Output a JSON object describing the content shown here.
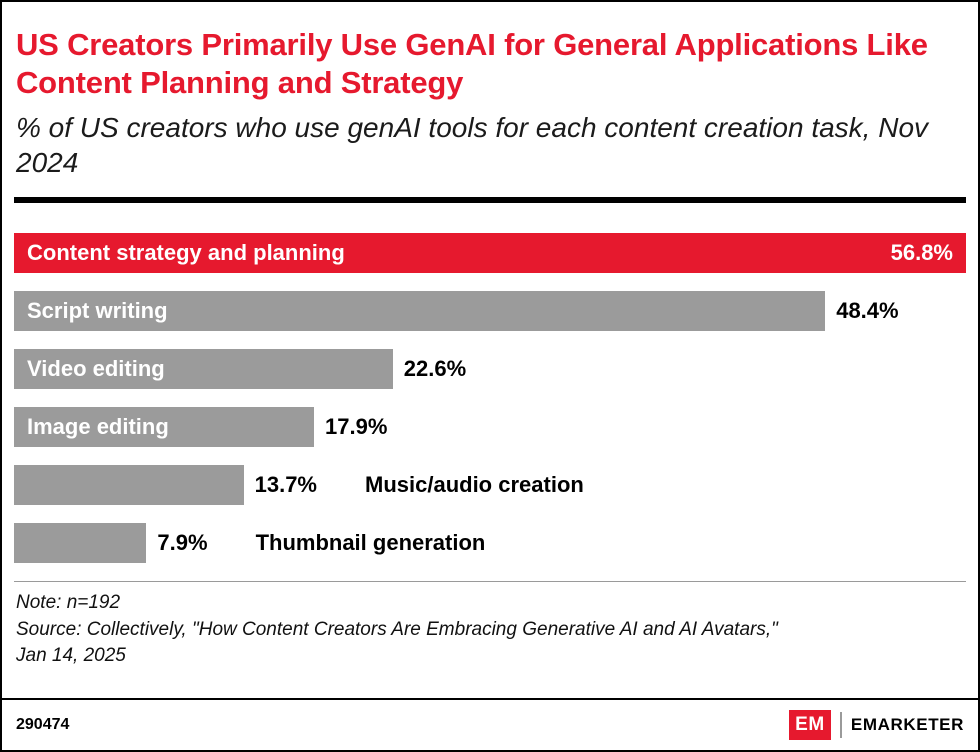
{
  "chart": {
    "title": "US Creators Primarily Use GenAI for General Applications Like Content Planning and Strategy",
    "subtitle": "% of US creators who use genAI tools for each content creation task, Nov 2024"
  },
  "chart_data": {
    "type": "bar",
    "orientation": "horizontal",
    "title": "US Creators Primarily Use GenAI for General Applications Like Content Planning and Strategy",
    "subtitle": "% of US creators who use genAI tools for each content creation task, Nov 2024",
    "categories": [
      "Content strategy and planning",
      "Script writing",
      "Video editing",
      "Image editing",
      "Music/audio creation",
      "Thumbnail generation"
    ],
    "values": [
      56.8,
      48.4,
      22.6,
      17.9,
      13.7,
      7.9
    ],
    "value_labels": [
      "56.8%",
      "48.4%",
      "22.6%",
      "17.9%",
      "13.7%",
      "7.9%"
    ],
    "xlim": [
      0,
      56.8
    ],
    "grid": false,
    "legend": false,
    "highlight_color": "#e6192e",
    "default_color": "#9b9b9b",
    "bars": [
      {
        "label": "Content strategy and planning",
        "value": 56.8,
        "display": "56.8%",
        "color": "#e6192e",
        "label_position": "inside",
        "value_position": "inside"
      },
      {
        "label": "Script writing",
        "value": 48.4,
        "display": "48.4%",
        "color": "#9b9b9b",
        "label_position": "inside",
        "value_position": "outside"
      },
      {
        "label": "Video editing",
        "value": 22.6,
        "display": "22.6%",
        "color": "#9b9b9b",
        "label_position": "inside",
        "value_position": "outside"
      },
      {
        "label": "Image editing",
        "value": 17.9,
        "display": "17.9%",
        "color": "#9b9b9b",
        "label_position": "inside",
        "value_position": "outside"
      },
      {
        "label": "Music/audio creation",
        "value": 13.7,
        "display": "13.7%",
        "color": "#9b9b9b",
        "label_position": "outside",
        "value_position": "outside"
      },
      {
        "label": "Thumbnail generation",
        "value": 7.9,
        "display": "7.9%",
        "color": "#9b9b9b",
        "label_position": "outside",
        "value_position": "outside"
      }
    ]
  },
  "notes": {
    "note": "Note: n=192",
    "source_line1": "Source: Collectively, \"How Content Creators Are Embracing Generative AI and AI Avatars,\"",
    "source_line2": "Jan 14, 2025"
  },
  "footer": {
    "id": "290474",
    "logo_monogram": "EM",
    "brand": "EMARKETER"
  }
}
